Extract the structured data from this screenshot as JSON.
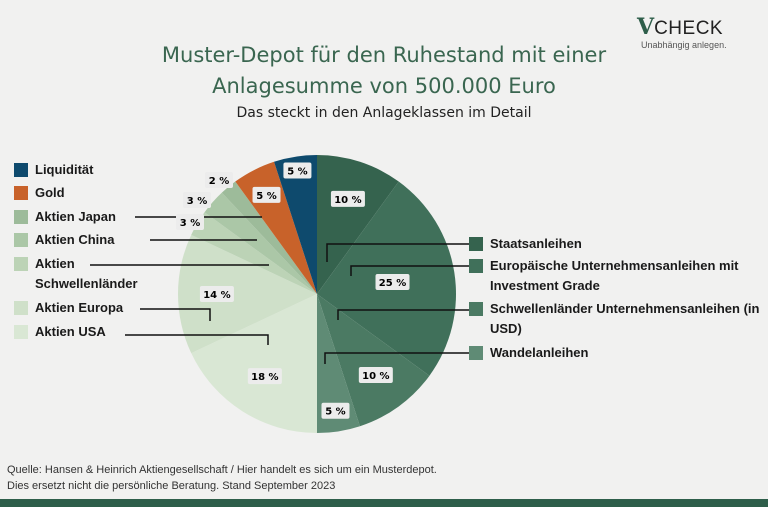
{
  "header": {
    "title_line1": "Muster-Depot für den Ruhestand mit einer",
    "title_line2": "Anlagesumme von 500.000 Euro",
    "subtitle": "Das steckt in den Anlageklassen im Detail"
  },
  "logo": {
    "mark": "V",
    "name": "CHECK",
    "tagline": "Unabhängig anlegen."
  },
  "chart_data": {
    "type": "pie",
    "start": "top",
    "direction": "clockwise",
    "slices": [
      {
        "name": "Staatsanleihen",
        "value": 10,
        "label": "10 %",
        "color": "#35634e"
      },
      {
        "name": "Europäische Unternehmensanleihen mit Investment Grade",
        "value": 25,
        "label": "25 %",
        "color": "#40705a"
      },
      {
        "name": "Schwellenländer Unternehmensanleihen (in USD)",
        "value": 10,
        "label": "10 %",
        "color": "#4b7a63"
      },
      {
        "name": "Wandelanleihen",
        "value": 5,
        "label": "5 %",
        "color": "#5f8b75"
      },
      {
        "name": "Aktien USA",
        "value": 18,
        "label": "18 %",
        "color": "#d9e7d4"
      },
      {
        "name": "Aktien Europa",
        "value": 14,
        "label": "14 %",
        "color": "#cfe0c9"
      },
      {
        "name": "Aktien Schwellenländer",
        "value": 3,
        "label": "3 %",
        "color": "#bcd3b6"
      },
      {
        "name": "Aktien China",
        "value": 3,
        "label": "3 %",
        "color": "#abc7a7"
      },
      {
        "name": "Aktien Japan",
        "value": 2,
        "label": "2 %",
        "color": "#9dbb9a"
      },
      {
        "name": "Gold",
        "value": 5,
        "label": "5 %",
        "color": "#c8622a"
      },
      {
        "name": "Liquidität",
        "value": 5,
        "label": "5 %",
        "color": "#0e4a6d"
      }
    ]
  },
  "legend_left": [
    {
      "text": "Liquidität",
      "color": "#0e4a6d"
    },
    {
      "text": "Gold",
      "color": "#c8622a"
    },
    {
      "text": "Aktien Japan",
      "color": "#9dbb9a"
    },
    {
      "text": "Aktien China",
      "color": "#abc7a7"
    },
    {
      "text": "Aktien Schwellenländer",
      "color": "#bcd3b6"
    },
    {
      "text": "Aktien Europa",
      "color": "#cfe0c9"
    },
    {
      "text": "Aktien USA",
      "color": "#d9e7d4"
    }
  ],
  "legend_right": [
    {
      "text": "Staatsanleihen",
      "color": "#35634e"
    },
    {
      "text": "Europäische Unternehmensanleihen mit Investment Grade",
      "color": "#40705a"
    },
    {
      "text": "Schwellenländer Unternehmensanleihen (in USD)",
      "color": "#4b7a63"
    },
    {
      "text": "Wandelanleihen",
      "color": "#5f8b75"
    }
  ],
  "footer": {
    "line1": "Quelle: Hansen & Heinrich Aktiengesellschaft  / Hier handelt es sich um ein Musterdepot.",
    "line2": "Dies ersetzt nicht die persönliche Beratung. Stand September 2023"
  }
}
